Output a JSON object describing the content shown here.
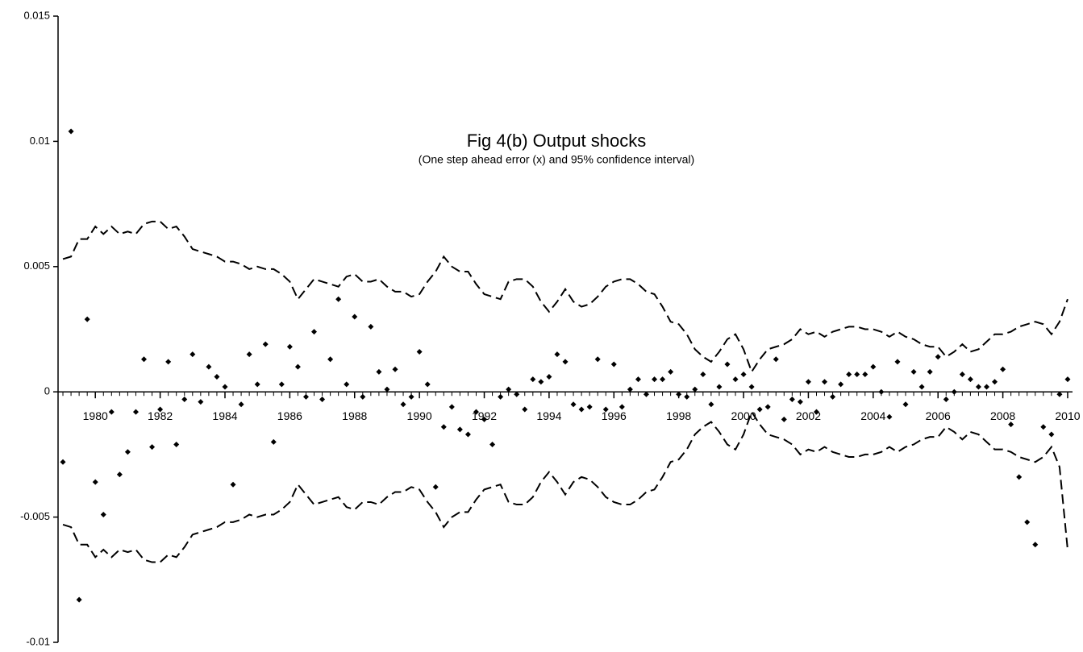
{
  "chart_data": {
    "type": "scatter",
    "title": "Fig 4(b) Output shocks",
    "subtitle": "(One step ahead error (x) and 95% confidence interval)",
    "xlim": [
      1978.85,
      2010.15
    ],
    "xticks": [
      1980,
      1982,
      1984,
      1986,
      1988,
      1990,
      1992,
      1994,
      1996,
      1998,
      2000,
      2002,
      2004,
      2006,
      2008,
      2010
    ],
    "ylim": [
      -0.01,
      0.015
    ],
    "yticks": [
      -0.01,
      -0.005,
      0,
      0.005,
      0.01,
      0.015
    ],
    "x": [
      1979,
      1979.25,
      1979.5,
      1979.75,
      1980,
      1980.25,
      1980.5,
      1980.75,
      1981,
      1981.25,
      1981.5,
      1981.75,
      1982,
      1982.25,
      1982.5,
      1982.75,
      1983,
      1983.25,
      1983.5,
      1983.75,
      1984,
      1984.25,
      1984.5,
      1984.75,
      1985,
      1985.25,
      1985.5,
      1985.75,
      1986,
      1986.25,
      1986.5,
      1986.75,
      1987,
      1987.25,
      1987.5,
      1987.75,
      1988,
      1988.25,
      1988.5,
      1988.75,
      1989,
      1989.25,
      1989.5,
      1989.75,
      1990,
      1990.25,
      1990.5,
      1990.75,
      1991,
      1991.25,
      1991.5,
      1991.75,
      1992,
      1992.25,
      1992.5,
      1992.75,
      1993,
      1993.25,
      1993.5,
      1993.75,
      1994,
      1994.25,
      1994.5,
      1994.75,
      1995,
      1995.25,
      1995.5,
      1995.75,
      1996,
      1996.25,
      1996.5,
      1996.75,
      1997,
      1997.25,
      1997.5,
      1997.75,
      1998,
      1998.25,
      1998.5,
      1998.75,
      1999,
      1999.25,
      1999.5,
      1999.75,
      2000,
      2000.25,
      2000.5,
      2000.75,
      2001,
      2001.25,
      2001.5,
      2001.75,
      2002,
      2002.25,
      2002.5,
      2002.75,
      2003,
      2003.25,
      2003.5,
      2003.75,
      2004,
      2004.25,
      2004.5,
      2004.75,
      2005,
      2005.25,
      2005.5,
      2005.75,
      2006,
      2006.25,
      2006.5,
      2006.75,
      2007,
      2007.25,
      2007.5,
      2007.75,
      2008,
      2008.25,
      2008.5,
      2008.75,
      2009,
      2009.25,
      2009.5,
      2009.75,
      2010
    ],
    "series": [
      {
        "kind": "points",
        "color": "#000000",
        "values": [
          -0.0028,
          0.0104,
          -0.0083,
          0.0029,
          -0.0036,
          -0.0049,
          -0.0008,
          -0.0033,
          -0.0024,
          -0.0008,
          0.0013,
          -0.0022,
          -0.0007,
          0.0012,
          -0.0021,
          -0.0003,
          0.0015,
          -0.0004,
          0.001,
          0.0006,
          0.0002,
          -0.0037,
          -0.0005,
          0.0015,
          0.0003,
          0.0019,
          -0.002,
          0.0003,
          0.0018,
          0.001,
          -0.0002,
          0.0024,
          -0.0003,
          0.0013,
          0.0037,
          0.0003,
          0.003,
          -0.0002,
          0.0026,
          0.0008,
          0.0001,
          0.0009,
          -0.0005,
          -0.0002,
          0.0016,
          0.0003,
          -0.0038,
          -0.0014,
          -0.0006,
          -0.0015,
          -0.0017,
          -0.0008,
          -0.0011,
          -0.0021,
          -0.0002,
          0.0001,
          -0.0001,
          -0.0007,
          0.0005,
          0.0004,
          0.0006,
          0.0015,
          0.0012,
          -0.0005,
          -0.0007,
          -0.0006,
          0.0013,
          -0.0007,
          0.0011,
          -0.0006,
          0.0001,
          0.0005,
          -0.0001,
          0.0005,
          0.0005,
          0.0008,
          -0.0001,
          -0.0002,
          0.0001,
          0.0007,
          -0.0005,
          0.0002,
          0.0011,
          0.0005,
          0.0007,
          0.0002,
          -0.0007,
          -0.0006,
          0.0013,
          -0.0011,
          -0.0003,
          -0.0004,
          0.0004,
          -0.0008,
          0.0004,
          -0.0002,
          0.0003,
          0.0007,
          0.0007,
          0.0007,
          0.001,
          0,
          -0.001,
          0.0012,
          -0.0005,
          0.0008,
          0.0002,
          0.0008,
          0.0014,
          -0.0003,
          0,
          0.0007,
          0.0005,
          0.0002,
          0.0002,
          0.0004,
          0.0009,
          -0.0013,
          -0.0034,
          -0.0052,
          -0.0061,
          -0.0014,
          -0.0017,
          -0.0001,
          0.0005
        ]
      },
      {
        "kind": "dashed-line",
        "color": "#000000",
        "values": [
          0.0053,
          0.0054,
          0.0061,
          0.0061,
          0.0066,
          0.0063,
          0.0066,
          0.0063,
          0.0064,
          0.0063,
          0.0067,
          0.0068,
          0.0068,
          0.0065,
          0.0066,
          0.0062,
          0.0057,
          0.0056,
          0.0055,
          0.0054,
          0.0052,
          0.0052,
          0.0051,
          0.0049,
          0.005,
          0.0049,
          0.0049,
          0.0047,
          0.0044,
          0.0037,
          0.0041,
          0.0045,
          0.0044,
          0.0043,
          0.0042,
          0.0046,
          0.0047,
          0.0044,
          0.0044,
          0.0045,
          0.0042,
          0.004,
          0.004,
          0.0038,
          0.0039,
          0.0044,
          0.0048,
          0.0054,
          0.005,
          0.0048,
          0.0048,
          0.0043,
          0.0039,
          0.0038,
          0.0037,
          0.0044,
          0.0045,
          0.0045,
          0.0042,
          0.0036,
          0.0032,
          0.0036,
          0.0041,
          0.0036,
          0.0034,
          0.0035,
          0.0038,
          0.0042,
          0.0044,
          0.0045,
          0.0045,
          0.0043,
          0.004,
          0.0039,
          0.0034,
          0.0028,
          0.0027,
          0.0023,
          0.0017,
          0.0014,
          0.0012,
          0.0016,
          0.0021,
          0.0023,
          0.0017,
          0.0008,
          0.0013,
          0.0017,
          0.0018,
          0.0019,
          0.0021,
          0.0025,
          0.0023,
          0.0024,
          0.0022,
          0.0024,
          0.0025,
          0.0026,
          0.0026,
          0.0025,
          0.0025,
          0.0024,
          0.0022,
          0.0024,
          0.0022,
          0.0021,
          0.0019,
          0.0018,
          0.0018,
          0.0014,
          0.0016,
          0.0019,
          0.0016,
          0.0017,
          0.002,
          0.0023,
          0.0023,
          0.0024,
          0.0026,
          0.0027,
          0.0028,
          0.0027,
          0.0023,
          0.0028,
          0.0037
        ]
      },
      {
        "kind": "dashed-line",
        "color": "#000000",
        "values": [
          -0.0053,
          -0.0054,
          -0.0061,
          -0.0061,
          -0.0066,
          -0.0063,
          -0.0066,
          -0.0063,
          -0.0064,
          -0.0063,
          -0.0067,
          -0.0068,
          -0.0068,
          -0.0065,
          -0.0066,
          -0.0062,
          -0.0057,
          -0.0056,
          -0.0055,
          -0.0054,
          -0.0052,
          -0.0052,
          -0.0051,
          -0.0049,
          -0.005,
          -0.0049,
          -0.0049,
          -0.0047,
          -0.0044,
          -0.0037,
          -0.0041,
          -0.0045,
          -0.0044,
          -0.0043,
          -0.0042,
          -0.0046,
          -0.0047,
          -0.0044,
          -0.0044,
          -0.0045,
          -0.0042,
          -0.004,
          -0.004,
          -0.0038,
          -0.0039,
          -0.0044,
          -0.0048,
          -0.0054,
          -0.005,
          -0.0048,
          -0.0048,
          -0.0043,
          -0.0039,
          -0.0038,
          -0.0037,
          -0.0044,
          -0.0045,
          -0.0045,
          -0.0042,
          -0.0036,
          -0.0032,
          -0.0036,
          -0.0041,
          -0.0036,
          -0.0034,
          -0.0035,
          -0.0038,
          -0.0042,
          -0.0044,
          -0.0045,
          -0.0045,
          -0.0043,
          -0.004,
          -0.0039,
          -0.0034,
          -0.0028,
          -0.0027,
          -0.0023,
          -0.0017,
          -0.0014,
          -0.0012,
          -0.0016,
          -0.0021,
          -0.0023,
          -0.0017,
          -0.0008,
          -0.0013,
          -0.0017,
          -0.0018,
          -0.0019,
          -0.0021,
          -0.0025,
          -0.0023,
          -0.0024,
          -0.0022,
          -0.0024,
          -0.0025,
          -0.0026,
          -0.0026,
          -0.0025,
          -0.0025,
          -0.0024,
          -0.0022,
          -0.0024,
          -0.0022,
          -0.0021,
          -0.0019,
          -0.0018,
          -0.0018,
          -0.0014,
          -0.0016,
          -0.0019,
          -0.0016,
          -0.0017,
          -0.002,
          -0.0023,
          -0.0023,
          -0.0024,
          -0.0026,
          -0.0027,
          -0.0028,
          -0.0026,
          -0.0022,
          -0.003,
          -0.0063
        ]
      }
    ]
  }
}
